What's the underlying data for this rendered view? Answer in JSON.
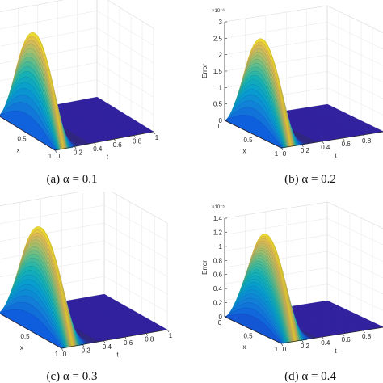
{
  "chart_data": [
    {
      "type": "surface",
      "caption": "(a) α = 0.1",
      "xlabel": "x",
      "ylabel": "t",
      "zlabel": "",
      "x_ticks": [
        "0.5",
        "1"
      ],
      "t_ticks": [
        "0",
        "0.2",
        "0.4",
        "0.6",
        "0.8",
        "1"
      ],
      "z_ticks": [],
      "z_exponent": "",
      "grid": true
    },
    {
      "type": "surface",
      "caption": "(b) α = 0.2",
      "xlabel": "x",
      "ylabel": "t",
      "zlabel": "Error",
      "x_ticks": [
        "0",
        "0.5",
        "1"
      ],
      "t_ticks": [
        "0",
        "0.2",
        "0.4",
        "0.6",
        "0.8",
        "1"
      ],
      "z_ticks": [
        "0",
        "0.5",
        "1",
        "1.5",
        "2",
        "2.5",
        "3"
      ],
      "z_exponent": "×10⁻⁶",
      "zlim": [
        0,
        3
      ],
      "grid": true
    },
    {
      "type": "surface",
      "caption": "(c) α = 0.3",
      "xlabel": "x",
      "ylabel": "t",
      "zlabel": "",
      "x_ticks": [
        "0.5",
        "1"
      ],
      "t_ticks": [
        "0",
        "0.2",
        "0.4",
        "0.6",
        "0.8",
        "1"
      ],
      "z_ticks": [],
      "z_exponent": "",
      "grid": true
    },
    {
      "type": "surface",
      "caption": "(d) α = 0.4",
      "xlabel": "x",
      "ylabel": "t",
      "zlabel": "Error",
      "x_ticks": [
        "0",
        "0.5",
        "1"
      ],
      "t_ticks": [
        "0",
        "0.2",
        "0.4",
        "0.6",
        "0.8",
        "1"
      ],
      "z_ticks": [
        "0",
        "0.2",
        "0.4",
        "0.6",
        "0.8",
        "1",
        "1.2",
        "1.4"
      ],
      "z_exponent": "×10⁻⁵",
      "zlim": [
        0,
        1.4
      ],
      "grid": true
    }
  ]
}
